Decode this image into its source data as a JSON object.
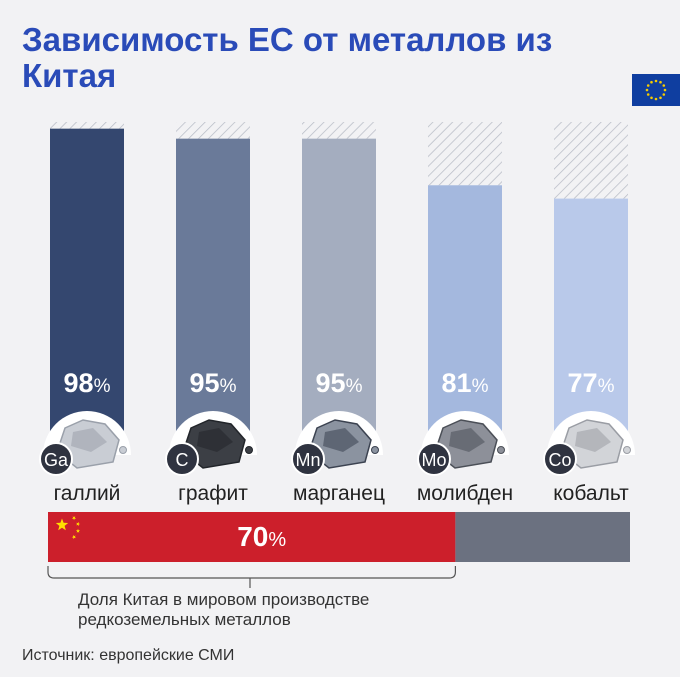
{
  "title_line1": "Зависимость ЕС от металлов из",
  "title_line2": "Китая",
  "colors": {
    "title": "#2a4bb8",
    "eu_flag": "#0f3ea0",
    "eu_stars": "#f5cc00",
    "china_bar": "#cc1f2b",
    "rest_bar": "#6b7180"
  },
  "chart_data": {
    "type": "bar",
    "title": "Зависимость ЕС от металлов из Китая",
    "categories": [
      "галлий",
      "графит",
      "марганец",
      "молибден",
      "кобальт"
    ],
    "symbols": [
      "Ga",
      "C",
      "Mn",
      "Mo",
      "Co"
    ],
    "values": [
      98,
      95,
      95,
      81,
      77
    ],
    "value_labels": [
      "98%",
      "95%",
      "95%",
      "81%",
      "77%"
    ],
    "bar_colors": [
      "#34476f",
      "#6a7a99",
      "#a4adbf",
      "#a4b8de",
      "#b9c9ea"
    ],
    "ylim": [
      0,
      100
    ],
    "unit": "%",
    "remainder_pattern": "hatched",
    "china_share": {
      "value": 70,
      "label": "70%",
      "note_line1": "Доля Китая в мировом производстве",
      "note_line2": "редкоземельных металлов"
    }
  },
  "source": "Источник: европейские СМИ"
}
